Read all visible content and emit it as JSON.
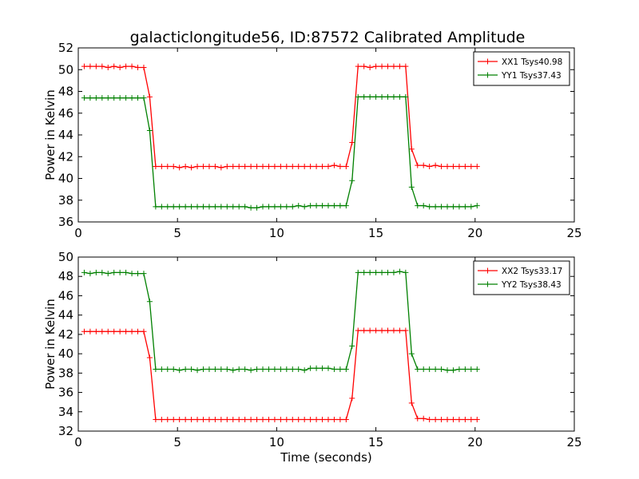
{
  "title": "galacticlongitude56, ID:87572 Calibrated Amplitude",
  "chart_data": [
    {
      "type": "line",
      "ylabel": "Power in Kelvin",
      "xlabel": "",
      "xlim": [
        0,
        25
      ],
      "ylim": [
        36,
        52
      ],
      "xticks": [
        0,
        5,
        10,
        15,
        20,
        25
      ],
      "yticks": [
        36,
        38,
        40,
        42,
        44,
        46,
        48,
        50,
        52
      ],
      "legend_position": "top-right",
      "marker": "+",
      "series": [
        {
          "name": "XX1 Tsys40.98",
          "color": "#ff0000",
          "x": [
            0.3,
            0.6,
            0.9,
            1.2,
            1.5,
            1.8,
            2.1,
            2.4,
            2.7,
            3.0,
            3.3,
            3.6,
            3.9,
            4.2,
            4.5,
            4.8,
            5.1,
            5.4,
            5.7,
            6.0,
            6.3,
            6.6,
            6.9,
            7.2,
            7.5,
            7.8,
            8.1,
            8.4,
            8.7,
            9.0,
            9.3,
            9.6,
            9.9,
            10.2,
            10.5,
            10.8,
            11.1,
            11.4,
            11.7,
            12.0,
            12.3,
            12.6,
            12.9,
            13.2,
            13.5,
            13.8,
            14.1,
            14.4,
            14.7,
            15.0,
            15.3,
            15.6,
            15.9,
            16.2,
            16.5,
            16.8,
            17.1,
            17.4,
            17.7,
            18.0,
            18.3,
            18.6,
            18.9,
            19.2,
            19.5,
            19.8,
            20.1
          ],
          "y": [
            50.3,
            50.3,
            50.3,
            50.3,
            50.2,
            50.3,
            50.2,
            50.3,
            50.3,
            50.2,
            50.2,
            47.5,
            41.1,
            41.1,
            41.1,
            41.1,
            41.0,
            41.1,
            41.0,
            41.1,
            41.1,
            41.1,
            41.1,
            41.0,
            41.1,
            41.1,
            41.1,
            41.1,
            41.1,
            41.1,
            41.1,
            41.1,
            41.1,
            41.1,
            41.1,
            41.1,
            41.1,
            41.1,
            41.1,
            41.1,
            41.1,
            41.1,
            41.2,
            41.1,
            41.1,
            43.3,
            50.3,
            50.3,
            50.2,
            50.3,
            50.3,
            50.3,
            50.3,
            50.3,
            50.3,
            42.7,
            41.2,
            41.2,
            41.1,
            41.2,
            41.1,
            41.1,
            41.1,
            41.1,
            41.1,
            41.1,
            41.1
          ]
        },
        {
          "name": "YY1 Tsys37.43",
          "color": "#008000",
          "x": [
            0.3,
            0.6,
            0.9,
            1.2,
            1.5,
            1.8,
            2.1,
            2.4,
            2.7,
            3.0,
            3.3,
            3.6,
            3.9,
            4.2,
            4.5,
            4.8,
            5.1,
            5.4,
            5.7,
            6.0,
            6.3,
            6.6,
            6.9,
            7.2,
            7.5,
            7.8,
            8.1,
            8.4,
            8.7,
            9.0,
            9.3,
            9.6,
            9.9,
            10.2,
            10.5,
            10.8,
            11.1,
            11.4,
            11.7,
            12.0,
            12.3,
            12.6,
            12.9,
            13.2,
            13.5,
            13.8,
            14.1,
            14.4,
            14.7,
            15.0,
            15.3,
            15.6,
            15.9,
            16.2,
            16.5,
            16.8,
            17.1,
            17.4,
            17.7,
            18.0,
            18.3,
            18.6,
            18.9,
            19.2,
            19.5,
            19.8,
            20.1
          ],
          "y": [
            47.4,
            47.4,
            47.4,
            47.4,
            47.4,
            47.4,
            47.4,
            47.4,
            47.4,
            47.4,
            47.4,
            44.4,
            37.4,
            37.4,
            37.4,
            37.4,
            37.4,
            37.4,
            37.4,
            37.4,
            37.4,
            37.4,
            37.4,
            37.4,
            37.4,
            37.4,
            37.4,
            37.4,
            37.3,
            37.3,
            37.4,
            37.4,
            37.4,
            37.4,
            37.4,
            37.4,
            37.5,
            37.4,
            37.5,
            37.5,
            37.5,
            37.5,
            37.5,
            37.5,
            37.5,
            39.8,
            47.5,
            47.5,
            47.5,
            47.5,
            47.5,
            47.5,
            47.5,
            47.5,
            47.5,
            39.2,
            37.5,
            37.5,
            37.4,
            37.4,
            37.4,
            37.4,
            37.4,
            37.4,
            37.4,
            37.4,
            37.5
          ]
        }
      ]
    },
    {
      "type": "line",
      "ylabel": "Power in Kelvin",
      "xlabel": "Time (seconds)",
      "xlim": [
        0,
        25
      ],
      "ylim": [
        32,
        50
      ],
      "xticks": [
        0,
        5,
        10,
        15,
        20,
        25
      ],
      "yticks": [
        32,
        34,
        36,
        38,
        40,
        42,
        44,
        46,
        48,
        50
      ],
      "legend_position": "top-right",
      "marker": "+",
      "series": [
        {
          "name": "XX2 Tsys33.17",
          "color": "#ff0000",
          "x": [
            0.3,
            0.6,
            0.9,
            1.2,
            1.5,
            1.8,
            2.1,
            2.4,
            2.7,
            3.0,
            3.3,
            3.6,
            3.9,
            4.2,
            4.5,
            4.8,
            5.1,
            5.4,
            5.7,
            6.0,
            6.3,
            6.6,
            6.9,
            7.2,
            7.5,
            7.8,
            8.1,
            8.4,
            8.7,
            9.0,
            9.3,
            9.6,
            9.9,
            10.2,
            10.5,
            10.8,
            11.1,
            11.4,
            11.7,
            12.0,
            12.3,
            12.6,
            12.9,
            13.2,
            13.5,
            13.8,
            14.1,
            14.4,
            14.7,
            15.0,
            15.3,
            15.6,
            15.9,
            16.2,
            16.5,
            16.8,
            17.1,
            17.4,
            17.7,
            18.0,
            18.3,
            18.6,
            18.9,
            19.2,
            19.5,
            19.8,
            20.1
          ],
          "y": [
            42.3,
            42.3,
            42.3,
            42.3,
            42.3,
            42.3,
            42.3,
            42.3,
            42.3,
            42.3,
            42.3,
            39.6,
            33.2,
            33.2,
            33.2,
            33.2,
            33.2,
            33.2,
            33.2,
            33.2,
            33.2,
            33.2,
            33.2,
            33.2,
            33.2,
            33.2,
            33.2,
            33.2,
            33.2,
            33.2,
            33.2,
            33.2,
            33.2,
            33.2,
            33.2,
            33.2,
            33.2,
            33.2,
            33.2,
            33.2,
            33.2,
            33.2,
            33.2,
            33.2,
            33.2,
            35.4,
            42.4,
            42.4,
            42.4,
            42.4,
            42.4,
            42.4,
            42.4,
            42.4,
            42.4,
            34.9,
            33.3,
            33.3,
            33.2,
            33.2,
            33.2,
            33.2,
            33.2,
            33.2,
            33.2,
            33.2,
            33.2
          ]
        },
        {
          "name": "YY2 Tsys38.43",
          "color": "#008000",
          "x": [
            0.3,
            0.6,
            0.9,
            1.2,
            1.5,
            1.8,
            2.1,
            2.4,
            2.7,
            3.0,
            3.3,
            3.6,
            3.9,
            4.2,
            4.5,
            4.8,
            5.1,
            5.4,
            5.7,
            6.0,
            6.3,
            6.6,
            6.9,
            7.2,
            7.5,
            7.8,
            8.1,
            8.4,
            8.7,
            9.0,
            9.3,
            9.6,
            9.9,
            10.2,
            10.5,
            10.8,
            11.1,
            11.4,
            11.7,
            12.0,
            12.3,
            12.6,
            12.9,
            13.2,
            13.5,
            13.8,
            14.1,
            14.4,
            14.7,
            15.0,
            15.3,
            15.6,
            15.9,
            16.2,
            16.5,
            16.8,
            17.1,
            17.4,
            17.7,
            18.0,
            18.3,
            18.6,
            18.9,
            19.2,
            19.5,
            19.8,
            20.1
          ],
          "y": [
            48.4,
            48.3,
            48.4,
            48.4,
            48.3,
            48.4,
            48.4,
            48.4,
            48.3,
            48.3,
            48.3,
            45.4,
            38.4,
            38.4,
            38.4,
            38.4,
            38.3,
            38.4,
            38.4,
            38.3,
            38.4,
            38.4,
            38.4,
            38.4,
            38.4,
            38.3,
            38.4,
            38.4,
            38.3,
            38.4,
            38.4,
            38.4,
            38.4,
            38.4,
            38.4,
            38.4,
            38.4,
            38.3,
            38.5,
            38.5,
            38.5,
            38.5,
            38.4,
            38.4,
            38.4,
            40.8,
            48.4,
            48.4,
            48.4,
            48.4,
            48.4,
            48.4,
            48.4,
            48.5,
            48.4,
            40.0,
            38.4,
            38.4,
            38.4,
            38.4,
            38.4,
            38.3,
            38.3,
            38.4,
            38.4,
            38.4,
            38.4
          ]
        }
      ]
    }
  ]
}
